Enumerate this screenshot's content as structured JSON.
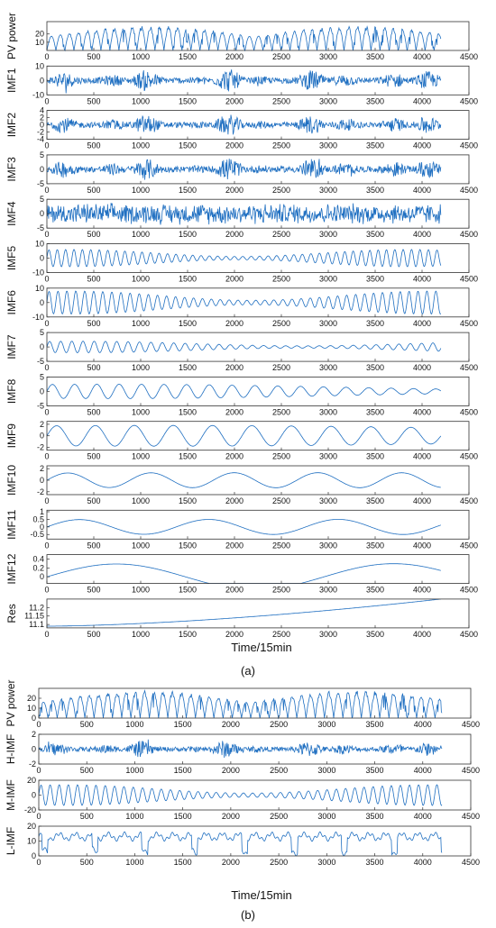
{
  "panel_a": {
    "label": "(a)",
    "xlabel": "Time/15min",
    "xlim": [
      0,
      4500
    ],
    "xticks": [
      "0",
      "500",
      "1000",
      "1500",
      "2000",
      "2500",
      "3000",
      "3500",
      "4000",
      "4500"
    ],
    "line_color": "#1f6fc1"
  },
  "panel_b": {
    "label": "(b)",
    "xlabel": "Time/15min",
    "xlim": [
      0,
      4500
    ],
    "xticks": [
      "0",
      "500",
      "1000",
      "1500",
      "2000",
      "2500",
      "3000",
      "3500",
      "4000",
      "4500"
    ],
    "line_color": "#1f6fc1"
  },
  "chart_data": [
    {
      "type": "line",
      "panel": "a",
      "subplots": [
        {
          "ylabel": "PV power",
          "ylim": [
            0,
            35
          ],
          "yticks": [
            "10",
            "20"
          ],
          "style": "daily",
          "amp": "0-30",
          "n": 4200
        },
        {
          "ylabel": "IMF1",
          "ylim": [
            -10,
            10
          ],
          "yticks": [
            "10",
            "0",
            "-10"
          ],
          "style": "burst",
          "amp": 8,
          "n": 4200
        },
        {
          "ylabel": "IMF2",
          "ylim": [
            -4,
            4
          ],
          "yticks": [
            "4",
            "2",
            "0",
            "-2",
            "-4"
          ],
          "style": "burst",
          "amp": 3,
          "n": 4200
        },
        {
          "ylabel": "IMF3",
          "ylim": [
            -5,
            5
          ],
          "yticks": [
            "5",
            "0",
            "-5"
          ],
          "style": "burst",
          "amp": 4,
          "n": 4200
        },
        {
          "ylabel": "IMF4",
          "ylim": [
            -5,
            5
          ],
          "yticks": [
            "5",
            "0",
            "-5"
          ],
          "style": "noise",
          "amp": 4,
          "n": 4200
        },
        {
          "ylabel": "IMF5",
          "ylim": [
            -10,
            10
          ],
          "yticks": [
            "10",
            "0",
            "-10"
          ],
          "style": "osc",
          "period": 90,
          "amp": 6,
          "n": 4200
        },
        {
          "ylabel": "IMF6",
          "ylim": [
            -10,
            10
          ],
          "yticks": [
            "10",
            "0",
            "-10"
          ],
          "style": "osc",
          "period": 96,
          "amp": 8,
          "n": 4200
        },
        {
          "ylabel": "IMF7",
          "ylim": [
            -5,
            5
          ],
          "yticks": [
            "5",
            "0",
            "-5"
          ],
          "style": "osc",
          "period": 120,
          "amp": 2,
          "n": 4200
        },
        {
          "ylabel": "IMF8",
          "ylim": [
            -5,
            5
          ],
          "yticks": [
            "5",
            "0",
            "-5"
          ],
          "style": "osc",
          "period": 240,
          "amp": 2.5,
          "n": 4200
        },
        {
          "ylabel": "IMF9",
          "ylim": [
            -2.5,
            2.5
          ],
          "yticks": [
            "2",
            "0",
            "-2"
          ],
          "style": "osc",
          "period": 420,
          "amp": 1.8,
          "n": 4200
        },
        {
          "ylabel": "IMF10",
          "ylim": [
            -2.5,
            2.5
          ],
          "yticks": [
            "2",
            "0",
            "-2"
          ],
          "style": "osc",
          "period": 900,
          "amp": 1.3,
          "n": 4200
        },
        {
          "ylabel": "IMF11",
          "ylim": [
            -0.8,
            1.1
          ],
          "yticks": [
            "1",
            "0.5",
            "0",
            "-0.5"
          ],
          "style": "osc",
          "period": 1400,
          "amp": 0.5,
          "n": 4200
        },
        {
          "ylabel": "IMF12",
          "ylim": [
            -0.15,
            0.5
          ],
          "yticks": [
            "0.4",
            "0.2",
            "0"
          ],
          "style": "osc",
          "period": 3000,
          "amp": 0.3,
          "n": 4200
        },
        {
          "ylabel": "Res",
          "ylim": [
            11.08,
            11.25
          ],
          "yticks": [
            "11.2",
            "11.15",
            "11.1"
          ],
          "style": "trend",
          "from": 11.09,
          "to": 11.25,
          "n": 4200
        }
      ]
    },
    {
      "type": "line",
      "panel": "b",
      "subplots": [
        {
          "ylabel": "PV power",
          "ylim": [
            0,
            30
          ],
          "yticks": [
            "20",
            "10",
            "0"
          ],
          "style": "daily",
          "amp": "0-28",
          "n": 4200
        },
        {
          "ylabel": "H-IMF",
          "ylim": [
            -2,
            2
          ],
          "yticks": [
            "2",
            "0",
            "-2"
          ],
          "style": "burst",
          "amp": 1.2,
          "n": 4200
        },
        {
          "ylabel": "M-IMF",
          "ylim": [
            -20,
            20
          ],
          "yticks": [
            "20",
            "0",
            "-20"
          ],
          "style": "osc",
          "period": 96,
          "amp": 14,
          "n": 4200
        },
        {
          "ylabel": "L-IMF",
          "ylim": [
            0,
            20
          ],
          "yticks": [
            "20",
            "10",
            "0"
          ],
          "style": "low",
          "amp": 7,
          "n": 4200
        }
      ]
    }
  ]
}
